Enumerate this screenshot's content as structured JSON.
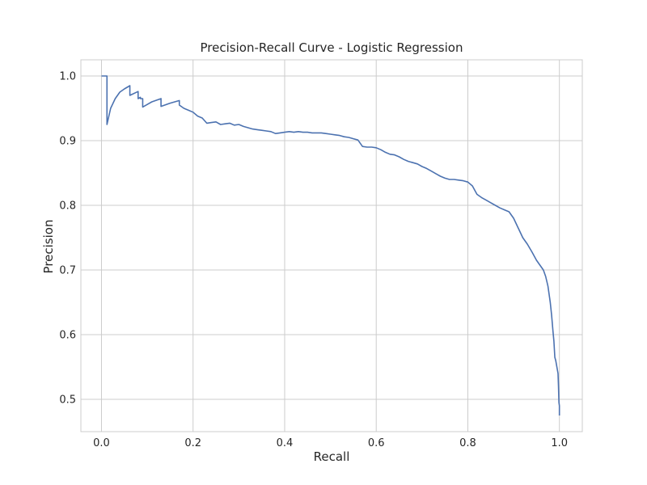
{
  "chart_data": {
    "type": "line",
    "title": "Precision-Recall Curve - Logistic Regression",
    "xlabel": "Recall",
    "ylabel": "Precision",
    "xlim": [
      -0.045,
      1.05
    ],
    "ylim": [
      0.45,
      1.025
    ],
    "xticks": [
      0.0,
      0.2,
      0.4,
      0.6,
      0.8,
      1.0
    ],
    "xtick_labels": [
      "0.0",
      "0.2",
      "0.4",
      "0.6",
      "0.8",
      "1.0"
    ],
    "yticks": [
      0.5,
      0.6,
      0.7,
      0.8,
      0.9,
      1.0
    ],
    "ytick_labels": [
      "0.5",
      "0.6",
      "0.7",
      "0.8",
      "0.9",
      "1.0"
    ],
    "grid": true,
    "series": [
      {
        "color": "#4c72b0",
        "x": [
          0.0,
          0.012,
          0.012,
          0.02,
          0.03,
          0.04,
          0.05,
          0.062,
          0.062,
          0.08,
          0.08,
          0.085,
          0.085,
          0.09,
          0.09,
          0.11,
          0.13,
          0.13,
          0.15,
          0.17,
          0.17,
          0.18,
          0.19,
          0.2,
          0.21,
          0.22,
          0.23,
          0.24,
          0.25,
          0.26,
          0.27,
          0.28,
          0.29,
          0.3,
          0.31,
          0.32,
          0.33,
          0.34,
          0.35,
          0.36,
          0.37,
          0.38,
          0.39,
          0.4,
          0.41,
          0.42,
          0.43,
          0.44,
          0.45,
          0.46,
          0.47,
          0.48,
          0.49,
          0.5,
          0.51,
          0.52,
          0.53,
          0.54,
          0.55,
          0.56,
          0.57,
          0.58,
          0.59,
          0.6,
          0.61,
          0.62,
          0.63,
          0.64,
          0.65,
          0.66,
          0.67,
          0.68,
          0.69,
          0.7,
          0.71,
          0.72,
          0.73,
          0.74,
          0.75,
          0.76,
          0.77,
          0.78,
          0.79,
          0.8,
          0.81,
          0.82,
          0.83,
          0.84,
          0.85,
          0.86,
          0.87,
          0.88,
          0.89,
          0.9,
          0.91,
          0.92,
          0.93,
          0.94,
          0.95,
          0.955,
          0.96,
          0.965,
          0.97,
          0.975,
          0.98,
          0.983,
          0.986,
          0.988,
          0.99,
          0.992,
          0.995,
          0.997,
          0.998,
          0.999,
          1.0,
          1.0
        ],
        "y": [
          1.0,
          1.0,
          0.925,
          0.95,
          0.965,
          0.975,
          0.98,
          0.985,
          0.97,
          0.976,
          0.965,
          0.967,
          0.965,
          0.965,
          0.952,
          0.96,
          0.965,
          0.953,
          0.958,
          0.962,
          0.955,
          0.95,
          0.947,
          0.944,
          0.938,
          0.935,
          0.927,
          0.928,
          0.929,
          0.925,
          0.926,
          0.927,
          0.924,
          0.925,
          0.922,
          0.92,
          0.918,
          0.917,
          0.916,
          0.915,
          0.914,
          0.911,
          0.912,
          0.913,
          0.914,
          0.913,
          0.914,
          0.913,
          0.913,
          0.912,
          0.912,
          0.912,
          0.911,
          0.91,
          0.909,
          0.908,
          0.906,
          0.905,
          0.903,
          0.901,
          0.891,
          0.89,
          0.89,
          0.889,
          0.886,
          0.882,
          0.879,
          0.878,
          0.875,
          0.871,
          0.868,
          0.866,
          0.864,
          0.86,
          0.857,
          0.853,
          0.849,
          0.845,
          0.842,
          0.84,
          0.84,
          0.839,
          0.838,
          0.836,
          0.83,
          0.817,
          0.812,
          0.808,
          0.804,
          0.8,
          0.796,
          0.793,
          0.79,
          0.78,
          0.765,
          0.75,
          0.74,
          0.728,
          0.715,
          0.71,
          0.705,
          0.7,
          0.69,
          0.675,
          0.65,
          0.63,
          0.605,
          0.59,
          0.565,
          0.56,
          0.548,
          0.54,
          0.52,
          0.495,
          0.49,
          0.475
        ]
      }
    ]
  }
}
